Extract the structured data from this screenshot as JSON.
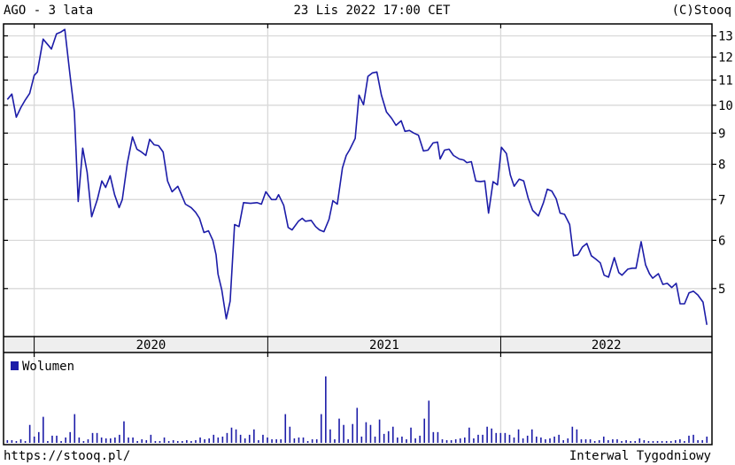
{
  "header": {
    "title": "AGO - 3 lata",
    "datetime": "23 Lis 2022 17:00 CET",
    "copyright": "(C)Stooq"
  },
  "footer": {
    "url": "https://stooq.pl/",
    "interval": "Interwal Tygodniowy"
  },
  "colors": {
    "line": "#1c1ca8",
    "volume": "#1c1ca8",
    "grid": "#d9d9d9",
    "year_band": "#eeeeee"
  },
  "chart_data": [
    {
      "type": "line",
      "yscale": "log",
      "ylim": [
        4.17,
        13.6
      ],
      "xlim": [
        "2019-11-14",
        "2022-11-28"
      ],
      "grid": true,
      "yticks": [
        5,
        6,
        7,
        8,
        9,
        10,
        11,
        12,
        13
      ],
      "ytick_labels": [
        "5",
        "6",
        "7",
        "8",
        "9",
        "10",
        "11",
        "12",
        "13"
      ],
      "x_tick_labels": [
        "2020",
        "2021",
        "2022"
      ],
      "x_ticks": [
        "2020-01-01",
        "2021-01-01",
        "2022-01-01",
        "2023-01-01"
      ],
      "points": [
        [
          "2019-11-20",
          10.22
        ],
        [
          "2019-11-27",
          10.43
        ],
        [
          "2019-12-04",
          9.56
        ],
        [
          "2019-12-11",
          9.91
        ],
        [
          "2019-12-18",
          10.2
        ],
        [
          "2019-12-25",
          10.46
        ],
        [
          "2020-01-01",
          11.19
        ],
        [
          "2020-01-06",
          11.34
        ],
        [
          "2020-01-15",
          12.84
        ],
        [
          "2020-01-28",
          12.37
        ],
        [
          "2020-02-05",
          13.1
        ],
        [
          "2020-02-12",
          13.19
        ],
        [
          "2020-02-18",
          13.32
        ],
        [
          "2020-02-26",
          11.23
        ],
        [
          "2020-03-04",
          9.75
        ],
        [
          "2020-03-10",
          6.95
        ],
        [
          "2020-03-17",
          8.5
        ],
        [
          "2020-03-24",
          7.76
        ],
        [
          "2020-03-31",
          6.56
        ],
        [
          "2020-04-09",
          7.0
        ],
        [
          "2020-04-16",
          7.51
        ],
        [
          "2020-04-22",
          7.33
        ],
        [
          "2020-04-29",
          7.66
        ],
        [
          "2020-05-06",
          7.13
        ],
        [
          "2020-05-13",
          6.79
        ],
        [
          "2020-05-18",
          7.0
        ],
        [
          "2020-05-26",
          8.03
        ],
        [
          "2020-06-03",
          8.87
        ],
        [
          "2020-06-10",
          8.47
        ],
        [
          "2020-06-17",
          8.38
        ],
        [
          "2020-06-24",
          8.27
        ],
        [
          "2020-06-30",
          8.79
        ],
        [
          "2020-07-07",
          8.61
        ],
        [
          "2020-07-14",
          8.58
        ],
        [
          "2020-07-21",
          8.38
        ],
        [
          "2020-07-28",
          7.51
        ],
        [
          "2020-08-04",
          7.21
        ],
        [
          "2020-08-13",
          7.36
        ],
        [
          "2020-08-18",
          7.16
        ],
        [
          "2020-08-25",
          6.88
        ],
        [
          "2020-09-03",
          6.79
        ],
        [
          "2020-09-10",
          6.67
        ],
        [
          "2020-09-16",
          6.52
        ],
        [
          "2020-09-23",
          6.18
        ],
        [
          "2020-09-30",
          6.22
        ],
        [
          "2020-10-07",
          6.0
        ],
        [
          "2020-10-12",
          5.68
        ],
        [
          "2020-10-15",
          5.28
        ],
        [
          "2020-10-21",
          4.97
        ],
        [
          "2020-10-28",
          4.46
        ],
        [
          "2020-11-03",
          4.77
        ],
        [
          "2020-11-10",
          6.37
        ],
        [
          "2020-11-17",
          6.32
        ],
        [
          "2020-11-24",
          6.92
        ],
        [
          "2020-12-05",
          6.9
        ],
        [
          "2020-12-15",
          6.92
        ],
        [
          "2020-12-22",
          6.88
        ],
        [
          "2020-12-29",
          7.21
        ],
        [
          "2021-01-07",
          7.0
        ],
        [
          "2021-01-14",
          7.0
        ],
        [
          "2021-01-18",
          7.13
        ],
        [
          "2021-01-26",
          6.85
        ],
        [
          "2021-02-02",
          6.3
        ],
        [
          "2021-02-08",
          6.24
        ],
        [
          "2021-02-18",
          6.45
        ],
        [
          "2021-02-24",
          6.52
        ],
        [
          "2021-03-01",
          6.45
        ],
        [
          "2021-03-10",
          6.47
        ],
        [
          "2021-03-17",
          6.32
        ],
        [
          "2021-03-23",
          6.24
        ],
        [
          "2021-03-30",
          6.2
        ],
        [
          "2021-04-07",
          6.5
        ],
        [
          "2021-04-13",
          6.97
        ],
        [
          "2021-04-20",
          6.88
        ],
        [
          "2021-04-28",
          7.89
        ],
        [
          "2021-05-04",
          8.27
        ],
        [
          "2021-05-09",
          8.44
        ],
        [
          "2021-05-18",
          8.82
        ],
        [
          "2021-05-24",
          10.39
        ],
        [
          "2021-05-31",
          10.02
        ],
        [
          "2021-06-07",
          11.15
        ],
        [
          "2021-06-14",
          11.3
        ],
        [
          "2021-06-21",
          11.34
        ],
        [
          "2021-06-28",
          10.39
        ],
        [
          "2021-07-06",
          9.75
        ],
        [
          "2021-07-14",
          9.52
        ],
        [
          "2021-07-21",
          9.27
        ],
        [
          "2021-07-29",
          9.43
        ],
        [
          "2021-08-04",
          9.06
        ],
        [
          "2021-08-11",
          9.09
        ],
        [
          "2021-08-18",
          9.0
        ],
        [
          "2021-08-25",
          8.93
        ],
        [
          "2021-09-02",
          8.41
        ],
        [
          "2021-09-09",
          8.44
        ],
        [
          "2021-09-17",
          8.67
        ],
        [
          "2021-09-24",
          8.7
        ],
        [
          "2021-09-28",
          8.16
        ],
        [
          "2021-10-05",
          8.44
        ],
        [
          "2021-10-12",
          8.47
        ],
        [
          "2021-10-19",
          8.27
        ],
        [
          "2021-10-28",
          8.16
        ],
        [
          "2021-11-04",
          8.13
        ],
        [
          "2021-11-09",
          8.05
        ],
        [
          "2021-11-16",
          8.08
        ],
        [
          "2021-11-23",
          7.51
        ],
        [
          "2021-11-30",
          7.49
        ],
        [
          "2021-12-07",
          7.51
        ],
        [
          "2021-12-13",
          6.65
        ],
        [
          "2021-12-20",
          7.49
        ],
        [
          "2021-12-27",
          7.4
        ],
        [
          "2022-01-02",
          8.53
        ],
        [
          "2022-01-10",
          8.33
        ],
        [
          "2022-01-16",
          7.68
        ],
        [
          "2022-01-22",
          7.36
        ],
        [
          "2022-01-30",
          7.56
        ],
        [
          "2022-02-06",
          7.51
        ],
        [
          "2022-02-13",
          7.04
        ],
        [
          "2022-02-20",
          6.72
        ],
        [
          "2022-03-01",
          6.58
        ],
        [
          "2022-03-09",
          6.92
        ],
        [
          "2022-03-15",
          7.28
        ],
        [
          "2022-03-22",
          7.23
        ],
        [
          "2022-03-29",
          7.02
        ],
        [
          "2022-04-04",
          6.65
        ],
        [
          "2022-04-11",
          6.62
        ],
        [
          "2022-04-19",
          6.37
        ],
        [
          "2022-04-25",
          5.66
        ],
        [
          "2022-05-02",
          5.68
        ],
        [
          "2022-05-09",
          5.85
        ],
        [
          "2022-05-16",
          5.93
        ],
        [
          "2022-05-23",
          5.66
        ],
        [
          "2022-05-30",
          5.59
        ],
        [
          "2022-06-06",
          5.51
        ],
        [
          "2022-06-12",
          5.26
        ],
        [
          "2022-06-19",
          5.22
        ],
        [
          "2022-06-28",
          5.62
        ],
        [
          "2022-07-05",
          5.31
        ],
        [
          "2022-07-10",
          5.26
        ],
        [
          "2022-07-19",
          5.38
        ],
        [
          "2022-07-26",
          5.4
        ],
        [
          "2022-08-01",
          5.4
        ],
        [
          "2022-08-09",
          5.97
        ],
        [
          "2022-08-16",
          5.47
        ],
        [
          "2022-08-22",
          5.29
        ],
        [
          "2022-08-27",
          5.2
        ],
        [
          "2022-09-05",
          5.29
        ],
        [
          "2022-09-12",
          5.08
        ],
        [
          "2022-09-19",
          5.1
        ],
        [
          "2022-09-26",
          5.02
        ],
        [
          "2022-10-03",
          5.1
        ],
        [
          "2022-10-09",
          4.72
        ],
        [
          "2022-10-16",
          4.72
        ],
        [
          "2022-10-23",
          4.92
        ],
        [
          "2022-10-30",
          4.95
        ],
        [
          "2022-11-06",
          4.88
        ],
        [
          "2022-11-14",
          4.75
        ],
        [
          "2022-11-20",
          4.36
        ]
      ]
    },
    {
      "type": "bar",
      "legend": "Wolumen",
      "legend_position": "top-left",
      "values_relative": [
        3,
        3,
        2,
        4,
        2,
        20,
        7,
        12,
        29,
        2,
        8,
        8,
        2,
        6,
        12,
        32,
        6,
        2,
        4,
        11,
        11,
        6,
        5,
        5,
        6,
        9,
        24,
        6,
        6,
        2,
        4,
        3,
        9,
        2,
        2,
        6,
        2,
        3,
        2,
        2,
        3,
        2,
        3,
        6,
        4,
        5,
        9,
        6,
        7,
        11,
        17,
        15,
        9,
        5,
        9,
        15,
        3,
        9,
        6,
        4,
        4,
        4,
        32,
        18,
        5,
        6,
        6,
        2,
        4,
        4,
        32,
        74,
        15,
        4,
        27,
        20,
        4,
        21,
        39,
        7,
        23,
        20,
        7,
        26,
        10,
        13,
        18,
        6,
        7,
        4,
        17,
        5,
        8,
        27,
        47,
        12,
        12,
        4,
        3,
        3,
        4,
        5,
        6,
        17,
        5,
        9,
        9,
        18,
        16,
        11,
        11,
        11,
        9,
        6,
        15,
        5,
        8,
        15,
        7,
        6,
        4,
        5,
        7,
        9,
        3,
        5,
        18,
        15,
        4,
        4,
        4,
        2,
        3,
        7,
        3,
        4,
        4,
        2,
        3,
        2,
        2,
        5,
        3,
        2,
        2,
        2,
        2,
        2,
        2,
        3,
        4,
        2,
        8,
        9,
        3,
        3,
        7
      ]
    }
  ]
}
